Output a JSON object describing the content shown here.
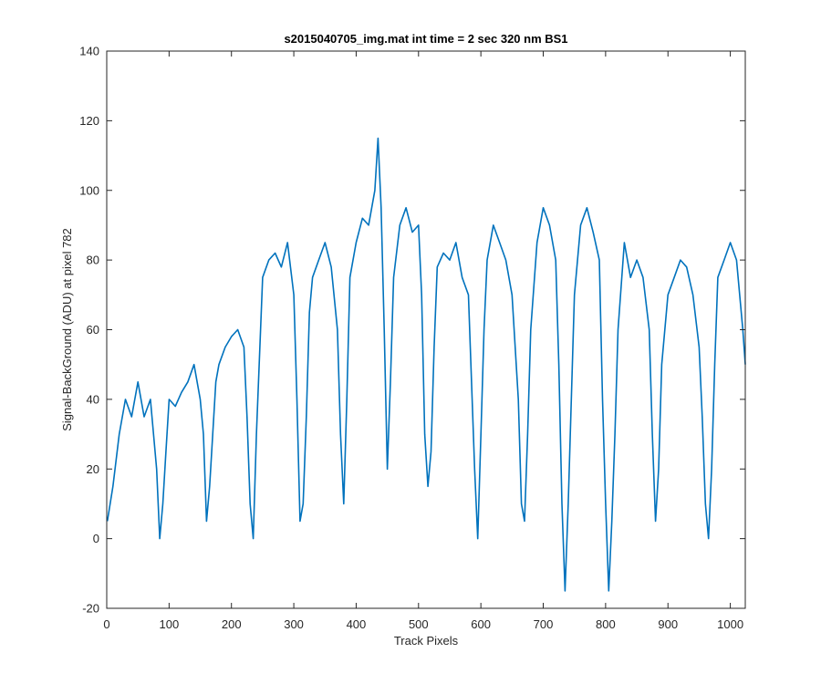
{
  "chart_data": {
    "type": "line",
    "title": "s2015040705_img.mat int time = 2 sec  320 nm BS1",
    "xlabel": "Track Pixels",
    "ylabel": "Signal-BackGround (ADU) at pixel 782",
    "xlim": [
      0,
      1024
    ],
    "ylim": [
      -20,
      140
    ],
    "xticks": [
      0,
      100,
      200,
      300,
      400,
      500,
      600,
      700,
      800,
      900,
      1000
    ],
    "yticks": [
      -20,
      0,
      20,
      40,
      60,
      80,
      100,
      120,
      140
    ],
    "grid": false,
    "line_color": "#0072BD",
    "series": [
      {
        "name": "",
        "x": [
          1,
          10,
          20,
          30,
          40,
          50,
          60,
          70,
          75,
          80,
          85,
          90,
          95,
          100,
          110,
          120,
          130,
          140,
          150,
          155,
          160,
          165,
          170,
          175,
          180,
          190,
          200,
          210,
          220,
          225,
          230,
          235,
          240,
          250,
          260,
          270,
          280,
          290,
          300,
          305,
          310,
          315,
          320,
          325,
          330,
          340,
          350,
          360,
          370,
          375,
          380,
          385,
          390,
          400,
          410,
          420,
          430,
          435,
          440,
          445,
          450,
          455,
          460,
          470,
          480,
          490,
          500,
          505,
          510,
          515,
          520,
          525,
          530,
          540,
          550,
          560,
          570,
          580,
          585,
          590,
          595,
          600,
          605,
          610,
          620,
          630,
          640,
          650,
          660,
          665,
          670,
          675,
          680,
          690,
          700,
          710,
          720,
          725,
          730,
          735,
          740,
          745,
          750,
          760,
          770,
          780,
          790,
          795,
          800,
          805,
          810,
          815,
          820,
          830,
          840,
          850,
          860,
          870,
          875,
          880,
          885,
          890,
          900,
          910,
          920,
          930,
          940,
          950,
          955,
          960,
          965,
          970,
          975,
          980,
          990,
          1000,
          1010,
          1020,
          1024
        ],
        "values": [
          5,
          15,
          30,
          40,
          35,
          45,
          35,
          40,
          30,
          20,
          0,
          10,
          25,
          40,
          38,
          42,
          45,
          50,
          40,
          30,
          5,
          15,
          30,
          45,
          50,
          55,
          58,
          60,
          55,
          35,
          10,
          0,
          30,
          75,
          80,
          82,
          78,
          85,
          70,
          40,
          5,
          10,
          35,
          65,
          75,
          80,
          85,
          78,
          60,
          30,
          10,
          40,
          75,
          85,
          92,
          90,
          100,
          115,
          95,
          60,
          20,
          45,
          75,
          90,
          95,
          88,
          90,
          70,
          30,
          15,
          25,
          55,
          78,
          82,
          80,
          85,
          75,
          70,
          45,
          20,
          0,
          30,
          60,
          80,
          90,
          85,
          80,
          70,
          40,
          10,
          5,
          30,
          60,
          85,
          95,
          90,
          80,
          50,
          10,
          -15,
          10,
          40,
          70,
          90,
          95,
          88,
          80,
          40,
          10,
          -15,
          5,
          30,
          60,
          85,
          75,
          80,
          75,
          60,
          30,
          5,
          20,
          50,
          70,
          75,
          80,
          78,
          70,
          55,
          35,
          10,
          0,
          20,
          50,
          75,
          80,
          85,
          80,
          60,
          50
        ]
      }
    ]
  }
}
